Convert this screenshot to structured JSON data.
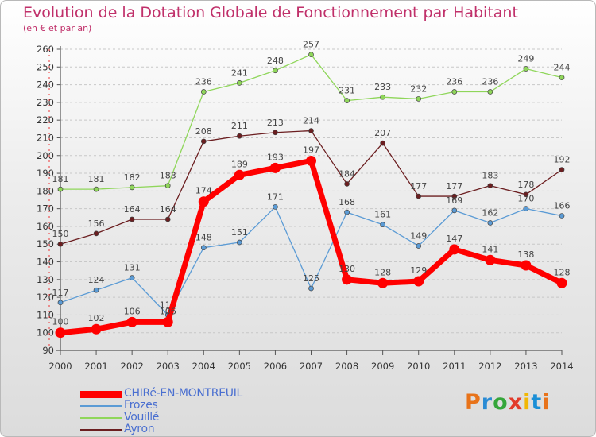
{
  "header": {
    "title": "Evolution de la Dotation Globale de Fonctionnement par Habitant",
    "subtitle": "(en € et par an)"
  },
  "logo": {
    "text": "Proxiti",
    "colors": [
      "#e8731a",
      "#2a8bd4",
      "#35a63a",
      "#e23a2a",
      "#f2b705",
      "#1b8fd6",
      "#e8731a"
    ]
  },
  "chart_data": {
    "type": "line",
    "title": "Evolution de la Dotation Globale de Fonctionnement par Habitant",
    "subtitle": "(en € et par an)",
    "xlabel": "",
    "ylabel": "",
    "x": [
      "2000",
      "2001",
      "2002",
      "2003",
      "2004",
      "2005",
      "2006",
      "2007",
      "2008",
      "2009",
      "2010",
      "2011",
      "2012",
      "2013",
      "2014"
    ],
    "ylim": [
      90,
      260
    ],
    "yticks": [
      90,
      100,
      110,
      120,
      130,
      140,
      150,
      160,
      170,
      180,
      190,
      200,
      210,
      220,
      230,
      240,
      250,
      260
    ],
    "grid": true,
    "legend": "bottom-left",
    "series": [
      {
        "name": "Vouillé",
        "color": "#8fd65a",
        "width": 1.3,
        "values": [
          181,
          181,
          182,
          183,
          236,
          241,
          248,
          257,
          231,
          233,
          232,
          236,
          236,
          249,
          244
        ],
        "labels": [
          "181",
          "181",
          "182",
          "183",
          "236",
          "241",
          "248",
          "257",
          "231",
          "233",
          "232",
          "236",
          "236",
          "249",
          "244"
        ]
      },
      {
        "name": "Ayron",
        "color": "#6b1e20",
        "width": 1.3,
        "values": [
          150,
          156,
          164,
          164,
          208,
          211,
          213,
          214,
          184,
          207,
          177,
          177,
          183,
          178,
          192
        ],
        "labels": [
          "150",
          "156",
          "164",
          "164",
          "208",
          "211",
          "213",
          "214",
          "184",
          "207",
          "177",
          "177",
          "183",
          "178",
          "192"
        ]
      },
      {
        "name": "Frozes",
        "color": "#5b9bd5",
        "width": 1.3,
        "values": [
          117,
          124,
          131,
          110,
          148,
          151,
          171,
          125,
          168,
          161,
          149,
          169,
          162,
          170,
          166
        ],
        "labels": [
          "117",
          "124",
          "131",
          "110",
          "148",
          "151",
          "171",
          "125",
          "168",
          "161",
          "149",
          "169",
          "162",
          "170",
          "166"
        ]
      },
      {
        "name": "CHIRé-EN-MONTREUIL",
        "color": "#ff0000",
        "width": 7,
        "values": [
          100,
          102,
          106,
          106,
          174,
          189,
          193,
          197,
          130,
          128,
          129,
          147,
          141,
          138,
          128
        ],
        "labels": [
          "100",
          "102",
          "106",
          "106",
          "174",
          "189",
          "193",
          "197",
          "130",
          "128",
          "129",
          "147",
          "141",
          "138",
          "128"
        ]
      }
    ],
    "legend_entries": [
      {
        "name": "CHIRé-EN-MONTREUIL",
        "color": "#ff0000"
      },
      {
        "name": "Frozes",
        "color": "#5b9bd5"
      },
      {
        "name": "Vouillé",
        "color": "#8fd65a"
      },
      {
        "name": "Ayron",
        "color": "#6b1e20"
      }
    ]
  }
}
